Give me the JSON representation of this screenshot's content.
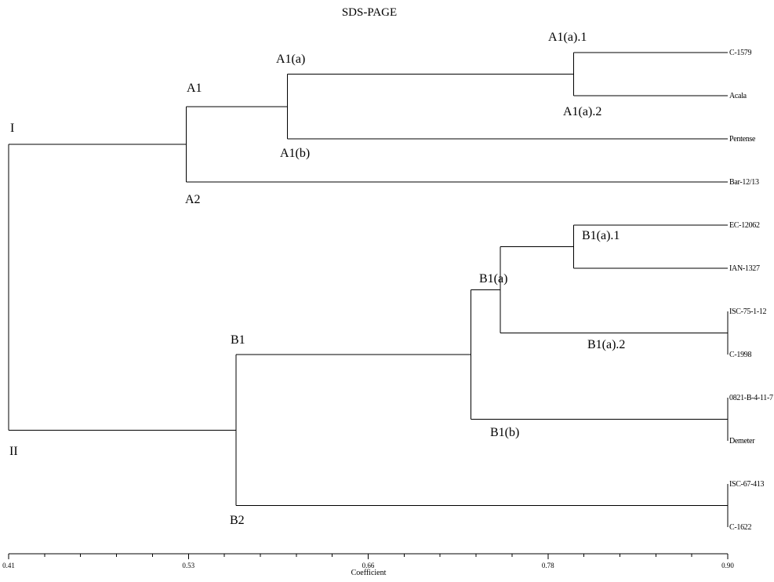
{
  "title": "SDS-PAGE",
  "axis": {
    "title": "Coefficient",
    "ticks": [
      "0.41",
      "0.53",
      "0.66",
      "0.78",
      "0.90"
    ],
    "range": [
      0.41,
      0.9
    ]
  },
  "leaves": [
    "C-1579",
    "Acala",
    "Pentense",
    "Bar-12/13",
    "EC-12062",
    "IAN-1327",
    "ISC-75-1-12",
    "C-1998",
    "0821-B-4-11-7",
    "Demeter",
    "ISC-67-413",
    "C-1622"
  ],
  "nodes": [
    {
      "id": "A1a1",
      "coef": 0.795,
      "children": [
        "C-1579",
        "Acala"
      ]
    },
    {
      "id": "A1a",
      "coef": 0.6,
      "children": [
        "A1a1",
        "Pentense"
      ]
    },
    {
      "id": "A1",
      "coef": 0.531,
      "children": [
        "A1a",
        "Bar-12/13"
      ]
    },
    {
      "id": "B1a1",
      "coef": 0.795,
      "children": [
        "EC-12062",
        "IAN-1327"
      ]
    },
    {
      "id": "B1a2",
      "coef": 0.9,
      "children": [
        "ISC-75-1-12",
        "C-1998"
      ]
    },
    {
      "id": "B1a",
      "coef": 0.745,
      "children": [
        "B1a1",
        "B1a2"
      ]
    },
    {
      "id": "B1b",
      "coef": 0.9,
      "children": [
        "0821-B-4-11-7",
        "Demeter"
      ]
    },
    {
      "id": "B1",
      "coef": 0.725,
      "children": [
        "B1a",
        "B1b"
      ]
    },
    {
      "id": "B2",
      "coef": 0.9,
      "children": [
        "ISC-67-413",
        "C-1622"
      ]
    },
    {
      "id": "Bgrp",
      "coef": 0.565,
      "children": [
        "B1",
        "B2"
      ]
    },
    {
      "id": "root",
      "coef": 0.41,
      "children": [
        "A1",
        "Bgrp"
      ]
    }
  ],
  "cluster_labels": [
    "I",
    "II",
    "A1",
    "A2",
    "A1(a)",
    "A1(b)",
    "A1(a).1",
    "A1(a).2",
    "B1",
    "B2",
    "B1(a)",
    "B1(b)",
    "B1(a).1",
    "B1(a).2"
  ]
}
